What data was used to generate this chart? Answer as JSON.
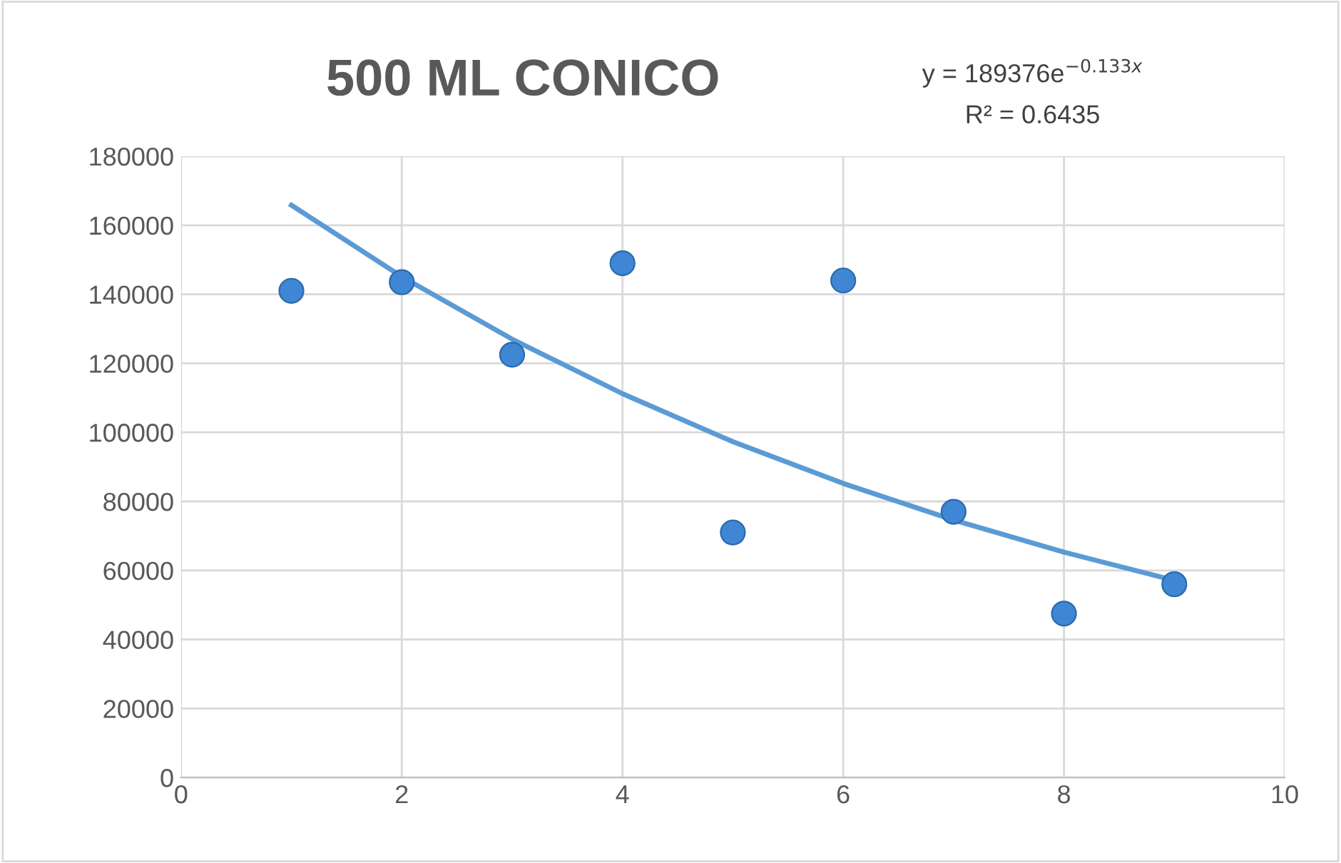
{
  "chart_data": {
    "type": "scatter",
    "title": "500 ML CONICO",
    "annotations": [
      "y = 189376e$^{−0.133x}$",
      "R² = 0.6435"
    ],
    "series": [
      {
        "color": "#3f86d4",
        "marker": "circle",
        "x": [
          1,
          2,
          3,
          4,
          5,
          6,
          7,
          8,
          9
        ],
        "values": [
          141000,
          143500,
          122500,
          149000,
          71000,
          144000,
          77000,
          47500,
          56000
        ]
      },
      {
        "type": "line",
        "color": "#5b9bd5",
        "marker": "none",
        "line_style": "solid",
        "x": [
          1,
          2,
          3,
          4,
          5,
          6,
          7,
          8,
          9
        ],
        "values": [
          165800,
          145100,
          127000,
          111200,
          97300,
          85200,
          74600,
          65300,
          57100
        ]
      }
    ],
    "xlim": [
      0,
      10
    ],
    "xticks": [
      0,
      2,
      4,
      6,
      8,
      10
    ],
    "ylim": [
      0,
      180000
    ],
    "yticks": [
      0,
      20000,
      40000,
      60000,
      80000,
      100000,
      120000,
      140000,
      160000,
      180000
    ],
    "grid": true,
    "legend": false
  }
}
